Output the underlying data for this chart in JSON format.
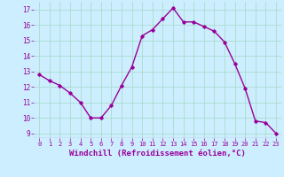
{
  "x": [
    0,
    1,
    2,
    3,
    4,
    5,
    6,
    7,
    8,
    9,
    10,
    11,
    12,
    13,
    14,
    15,
    16,
    17,
    18,
    19,
    20,
    21,
    22,
    23
  ],
  "y": [
    12.8,
    12.4,
    12.1,
    11.6,
    11.0,
    10.0,
    10.0,
    10.8,
    12.1,
    13.3,
    15.3,
    15.7,
    16.4,
    17.1,
    16.2,
    16.2,
    15.9,
    15.6,
    14.9,
    13.5,
    11.9,
    9.8,
    9.7,
    9.0
  ],
  "line_color": "#990099",
  "marker": "D",
  "markersize": 1.8,
  "linewidth": 1.0,
  "xlabel": "Windchill (Refroidissement éolien,°C)",
  "xlabel_fontsize": 6.5,
  "bg_color": "#cceeff",
  "grid_color": "#aaddcc",
  "tick_color": "#990099",
  "label_color": "#990099",
  "ylim": [
    8.7,
    17.5
  ],
  "xlim": [
    -0.5,
    23.5
  ],
  "yticks": [
    9,
    10,
    11,
    12,
    13,
    14,
    15,
    16,
    17
  ],
  "xticks": [
    0,
    1,
    2,
    3,
    4,
    5,
    6,
    7,
    8,
    9,
    10,
    11,
    12,
    13,
    14,
    15,
    16,
    17,
    18,
    19,
    20,
    21,
    22,
    23
  ]
}
